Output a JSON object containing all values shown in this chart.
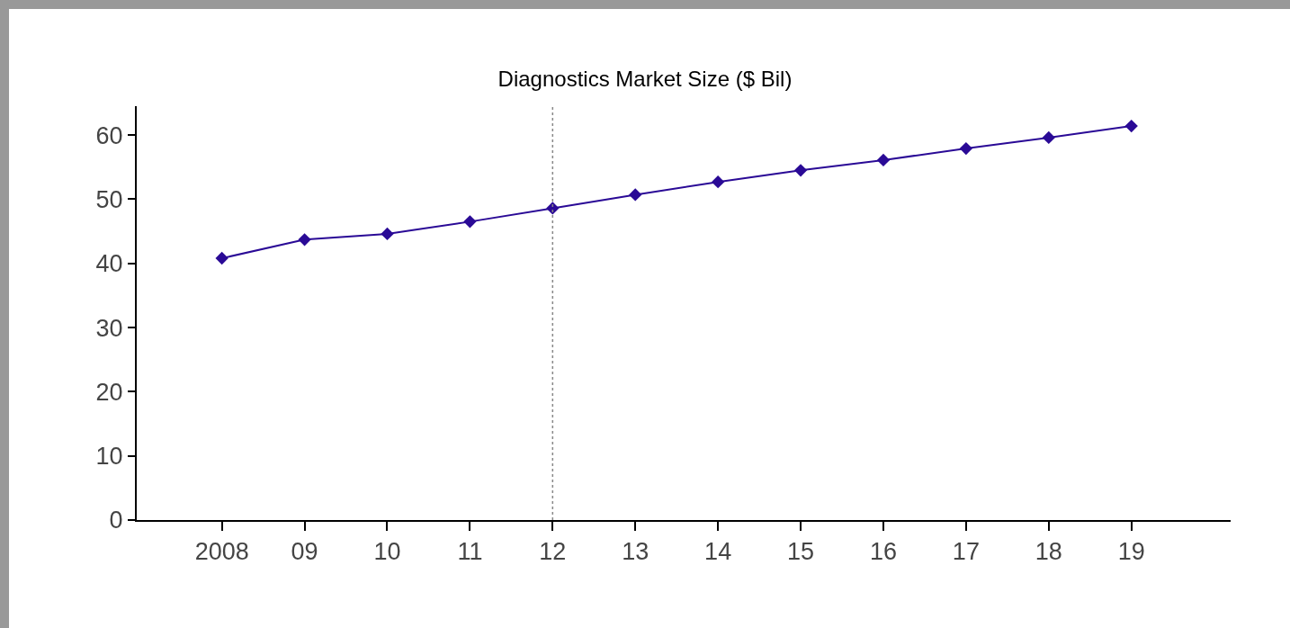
{
  "chart_data": {
    "type": "line",
    "title": "Diagnostics Market Size ($ Bil)",
    "categories": [
      "2008",
      "09",
      "10",
      "11",
      "12",
      "13",
      "14",
      "15",
      "16",
      "17",
      "18",
      "19"
    ],
    "series": [
      {
        "color": "#2a0a96",
        "values": [
          40.8,
          43.7,
          44.6,
          46.5,
          48.6,
          50.7,
          52.7,
          54.5,
          56.1,
          57.9,
          59.6,
          61.4
        ]
      }
    ],
    "ylim": [
      0,
      64.5
    ],
    "yticks": [
      0,
      10,
      20,
      30,
      40,
      50,
      60
    ],
    "ref_lines": [
      {
        "axis": "x",
        "value": "12",
        "color": "#888888",
        "line_style": "dotted"
      }
    ],
    "marker": "diamond",
    "line_style": "solid",
    "grid": false
  }
}
